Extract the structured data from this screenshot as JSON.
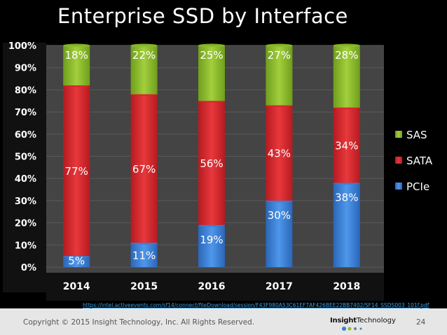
{
  "slide": {
    "title": "Enterprise SSD by Interface",
    "url": "https://intel.activeevents.com/sf14/connect/fileDownload/session/F43F980A53C61EF7AF426BEE22BB7402/SF14_SSDS003_101f.pdf",
    "copyright": "Copyright © 2015 Insight Technology, Inc. All Rights Reserved.",
    "logo_bold": "Insight",
    "logo_rest": "Technology",
    "page_number": "24"
  },
  "chart_data": {
    "type": "bar",
    "stacked": true,
    "categories": [
      "2014",
      "2015",
      "2016",
      "2017",
      "2018"
    ],
    "series": [
      {
        "name": "PCIe",
        "values": [
          5,
          11,
          19,
          30,
          38
        ],
        "labels": [
          "5%",
          "11%",
          "19%",
          "30%",
          "38%"
        ],
        "color": "#3a7fd6"
      },
      {
        "name": "SATA",
        "values": [
          77,
          67,
          56,
          43,
          34
        ],
        "labels": [
          "77%",
          "67%",
          "56%",
          "43%",
          "34%"
        ],
        "color": "#d9262b"
      },
      {
        "name": "SAS",
        "values": [
          18,
          22,
          25,
          27,
          28
        ],
        "labels": [
          "18%",
          "22%",
          "25%",
          "27%",
          "28%"
        ],
        "color": "#8bbd2a"
      }
    ],
    "y_ticks": [
      "0%",
      "10%",
      "20%",
      "30%",
      "40%",
      "50%",
      "60%",
      "70%",
      "80%",
      "90%",
      "100%"
    ],
    "ylim": [
      0,
      100
    ],
    "legend_position": "right",
    "legend_order": [
      "SAS",
      "SATA",
      "PCIe"
    ],
    "grid": true
  }
}
